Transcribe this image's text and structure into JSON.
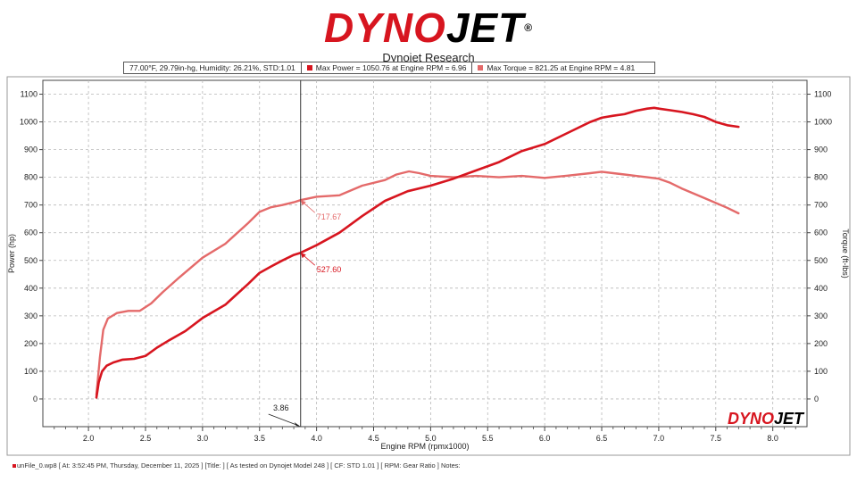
{
  "logo": {
    "dyno": "DYNO",
    "jet": "JET",
    "reg": "®"
  },
  "colors": {
    "power": "#d7151f",
    "torque": "#e46a6a",
    "grid": "#b8b8b8",
    "cursor": "#333333"
  },
  "info": {
    "conditions": "77.00°F, 29.79in-hg, Humidity: 26.21%, STD:1.01",
    "max_power": "Max Power = 1050.76 at Engine RPM = 6.96",
    "max_torque": "Max Torque = 821.25 at Engine RPM = 4.81"
  },
  "footer": {
    "text": "unFile_0.wp8 [ At: 3:52:45 PM, Thursday, December 11, 2025 ] [Title: ]  [ As tested on Dynojet Model 248 ] [ CF: STD 1.01 ] [ RPM: Gear Ratio ] Notes:"
  },
  "chart_data": {
    "type": "line",
    "title": "Dynojet Research",
    "xlabel": "Engine RPM (rpmx1000)",
    "ylabel": "Power (hp)",
    "y2label": "Torque (ft-lbs)",
    "xlim": [
      1.6,
      8.3
    ],
    "ylim": [
      -100,
      1150
    ],
    "y2lim": [
      -100,
      1150
    ],
    "xticks": [
      "2.0",
      "2.5",
      "3.0",
      "3.5",
      "4.0",
      "4.5",
      "5.0",
      "5.5",
      "6.0",
      "6.5",
      "7.0",
      "7.5",
      "8.0"
    ],
    "yticks": [
      "0",
      "100",
      "200",
      "300",
      "400",
      "500",
      "600",
      "700",
      "800",
      "900",
      "1000",
      "1100"
    ],
    "grid": true,
    "cursor": {
      "x": 3.86,
      "label": "3.86"
    },
    "annotations": [
      {
        "series": "torque",
        "x": 3.86,
        "y": 717.67,
        "label": "717.67"
      },
      {
        "series": "power",
        "x": 3.86,
        "y": 527.6,
        "label": "527.60"
      }
    ],
    "watermark": {
      "dyno": "DYNO",
      "jet": "JET"
    },
    "series": [
      {
        "id": "power",
        "x": [
          2.07,
          2.09,
          2.12,
          2.16,
          2.22,
          2.3,
          2.4,
          2.5,
          2.6,
          2.7,
          2.85,
          3.0,
          3.2,
          3.4,
          3.5,
          3.6,
          3.7,
          3.8,
          3.86,
          4.0,
          4.2,
          4.4,
          4.6,
          4.8,
          5.0,
          5.2,
          5.4,
          5.6,
          5.8,
          6.0,
          6.2,
          6.4,
          6.5,
          6.6,
          6.7,
          6.8,
          6.9,
          6.96,
          7.0,
          7.1,
          7.2,
          7.3,
          7.4,
          7.5,
          7.6,
          7.7
        ],
        "values": [
          5,
          60,
          100,
          120,
          132,
          142,
          145,
          155,
          185,
          210,
          245,
          292,
          340,
          415,
          455,
          478,
          500,
          520,
          527.6,
          555,
          600,
          660,
          715,
          750,
          770,
          795,
          825,
          855,
          895,
          920,
          960,
          1000,
          1015,
          1022,
          1028,
          1040,
          1048,
          1050.76,
          1048,
          1042,
          1036,
          1028,
          1018,
          1000,
          988,
          982
        ]
      },
      {
        "id": "torque",
        "x": [
          2.07,
          2.1,
          2.13,
          2.17,
          2.25,
          2.35,
          2.45,
          2.55,
          2.65,
          2.8,
          3.0,
          3.2,
          3.4,
          3.5,
          3.6,
          3.7,
          3.8,
          3.86,
          4.0,
          4.2,
          4.4,
          4.6,
          4.7,
          4.81,
          4.9,
          5.0,
          5.2,
          5.4,
          5.6,
          5.8,
          6.0,
          6.2,
          6.4,
          6.5,
          6.6,
          6.7,
          6.8,
          6.9,
          7.0,
          7.1,
          7.2,
          7.4,
          7.6,
          7.7
        ],
        "values": [
          15,
          150,
          250,
          290,
          310,
          318,
          318,
          345,
          385,
          440,
          510,
          560,
          635,
          675,
          692,
          700,
          710,
          717.67,
          730,
          735,
          770,
          790,
          810,
          821.25,
          815,
          805,
          800,
          805,
          800,
          805,
          798,
          806,
          815,
          820,
          815,
          810,
          805,
          800,
          795,
          780,
          760,
          725,
          690,
          670
        ]
      }
    ]
  }
}
